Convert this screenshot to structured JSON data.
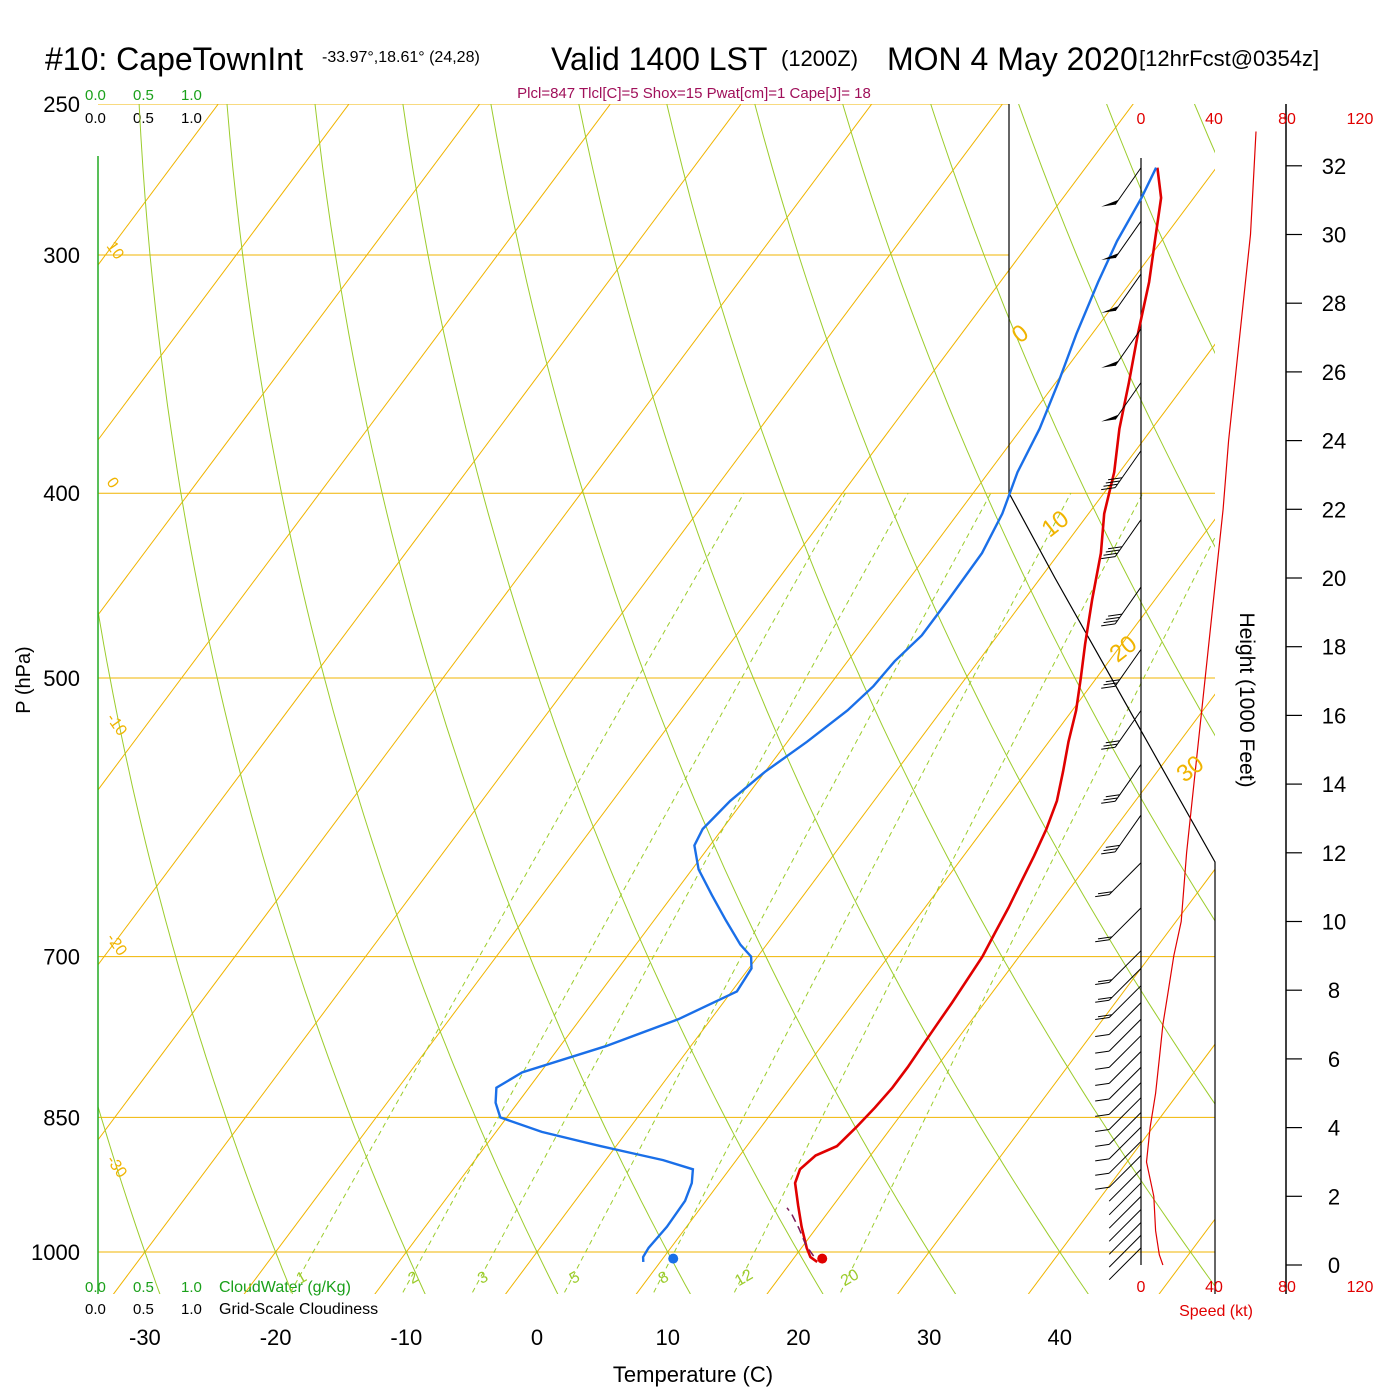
{
  "header": {
    "station": "#10: CapeTownInt",
    "coords": "-33.97°,18.61° (24,28)",
    "valid": "Valid 1400 LST",
    "zulu": "(1200Z)",
    "date": "MON 4 May 2020",
    "forecast": "[12hrFcst@0354z]"
  },
  "indices_text": "Plcl=847 Tlcl[C]=5 Shox=15 Pwat[cm]=1 Cape[J]= 18",
  "cloud_scale": {
    "values": [
      "0.0",
      "0.5",
      "1.0"
    ]
  },
  "footer": {
    "cloudwater_label": "CloudWater (g/Kg)",
    "cloudiness_label": "Grid-Scale Cloudiness"
  },
  "colors": {
    "isotherm": "#f0b400",
    "dry_adiabat": "#9ccc2c",
    "mixing_ratio": "#9ccc2c",
    "temperature": "#e00000",
    "dewpoint": "#1a6fe8",
    "speed": "#e00000",
    "indices": "#a0105a",
    "cloud": "#1aa01a"
  },
  "chart_data": {
    "type": "skew-t",
    "xlabel": "Temperature (C)",
    "ylabel": "P (hPa)",
    "y2label": "Height (1000 Feet)",
    "x_ticks": [
      -30,
      -20,
      -10,
      0,
      10,
      20,
      30,
      40
    ],
    "p_ticks": [
      250,
      300,
      400,
      500,
      700,
      850,
      1000
    ],
    "height_ticks": [
      0,
      2,
      4,
      6,
      8,
      10,
      12,
      14,
      16,
      18,
      20,
      22,
      24,
      26,
      28,
      30,
      32
    ],
    "speed_axis": {
      "label": "Speed (kt)",
      "ticks": [
        0,
        40,
        80,
        120
      ]
    },
    "isotherm_labels": [
      {
        "t": 10,
        "label": "10"
      },
      {
        "t": 0,
        "label": "0"
      },
      {
        "t": -10,
        "label": "-10"
      },
      {
        "t": -20,
        "label": "-20"
      },
      {
        "t": -30,
        "label": "-30"
      },
      {
        "t": 0,
        "label": "0"
      },
      {
        "t": 10,
        "label": "10"
      },
      {
        "t": 20,
        "label": "20"
      },
      {
        "t": 30,
        "label": "30"
      }
    ],
    "mixing_ratio_labels": [
      "1",
      "2",
      "3",
      "5",
      "8",
      "12",
      "20"
    ],
    "series": [
      {
        "name": "temperature",
        "points": [
          [
            22.0,
            1012
          ],
          [
            21.2,
            1006
          ],
          [
            20.4,
            995
          ],
          [
            18.8,
            970
          ],
          [
            17.3,
            945
          ],
          [
            15.8,
            920
          ],
          [
            15.4,
            905
          ],
          [
            15.8,
            890
          ],
          [
            16.9,
            880
          ],
          [
            17.3,
            860
          ],
          [
            17.6,
            840
          ],
          [
            17.8,
            820
          ],
          [
            17.8,
            800
          ],
          [
            17.7,
            780
          ],
          [
            17.6,
            760
          ],
          [
            17.5,
            740
          ],
          [
            17.2,
            700
          ],
          [
            16.8,
            680
          ],
          [
            16.4,
            660
          ],
          [
            15.9,
            640
          ],
          [
            15.4,
            620
          ],
          [
            14.8,
            600
          ],
          [
            14.0,
            580
          ],
          [
            12.8,
            560
          ],
          [
            11.5,
            540
          ],
          [
            10.3,
            520
          ],
          [
            8.8,
            500
          ],
          [
            7.2,
            480
          ],
          [
            5.2,
            455
          ],
          [
            3.2,
            430
          ],
          [
            1.2,
            410
          ],
          [
            -0.4,
            390
          ],
          [
            -2.5,
            370
          ],
          [
            -4.4,
            350
          ],
          [
            -6.5,
            330
          ],
          [
            -8.6,
            310
          ],
          [
            -10.5,
            295
          ],
          [
            -12.5,
            280
          ],
          [
            -14.5,
            270
          ]
        ]
      },
      {
        "name": "dewpoint",
        "points": [
          [
            8.7,
            1012
          ],
          [
            8.4,
            1006
          ],
          [
            8.3,
            995
          ],
          [
            8.5,
            970
          ],
          [
            8.4,
            940
          ],
          [
            7.9,
            920
          ],
          [
            7.2,
            905
          ],
          [
            4.4,
            895
          ],
          [
            -1.2,
            880
          ],
          [
            -6.5,
            865
          ],
          [
            -10.5,
            850
          ],
          [
            -11.7,
            835
          ],
          [
            -12.5,
            820
          ],
          [
            -11.4,
            805
          ],
          [
            -6.5,
            780
          ],
          [
            -2.5,
            755
          ],
          [
            0.4,
            730
          ],
          [
            0.2,
            710
          ],
          [
            -0.5,
            700
          ],
          [
            -2.0,
            690
          ],
          [
            -4.5,
            670
          ],
          [
            -7.0,
            650
          ],
          [
            -9.5,
            630
          ],
          [
            -11.2,
            612
          ],
          [
            -11.5,
            600
          ],
          [
            -11.0,
            580
          ],
          [
            -10.0,
            560
          ],
          [
            -8.5,
            540
          ],
          [
            -7.2,
            520
          ],
          [
            -6.6,
            505
          ],
          [
            -6.4,
            490
          ],
          [
            -5.8,
            475
          ],
          [
            -5.8,
            455
          ],
          [
            -5.9,
            430
          ],
          [
            -6.6,
            410
          ],
          [
            -7.8,
            390
          ],
          [
            -8.6,
            370
          ],
          [
            -9.8,
            350
          ],
          [
            -11.2,
            330
          ],
          [
            -12.5,
            310
          ],
          [
            -13.4,
            295
          ],
          [
            -14.0,
            280
          ],
          [
            -14.6,
            270
          ]
        ]
      },
      {
        "name": "parcel",
        "points": [
          [
            21.4,
            1005
          ],
          [
            20.2,
            992
          ],
          [
            18.7,
            972
          ],
          [
            17.3,
            955
          ],
          [
            16.6,
            948
          ]
        ]
      }
    ],
    "surface_markers": {
      "temperature": 22.2,
      "dewpoint": 10.8,
      "p": 1008
    },
    "wind_speed_profile": {
      "z_kft": [
        0,
        0.3,
        1,
        2,
        3,
        4,
        5,
        6,
        7,
        8,
        9,
        10,
        12,
        14,
        16,
        18,
        20,
        22,
        24,
        26,
        28,
        30,
        32,
        33
      ],
      "kt": [
        12,
        10,
        8,
        7,
        3,
        5,
        8,
        10,
        12,
        15,
        18,
        22,
        25,
        29,
        33,
        37,
        41,
        45,
        48,
        52,
        56,
        60,
        62,
        63
      ]
    },
    "wind_barbs": [
      {
        "p": 995,
        "full": 0
      },
      {
        "p": 980,
        "full": 0
      },
      {
        "p": 965,
        "full": 0
      },
      {
        "p": 950,
        "full": 0
      },
      {
        "p": 935,
        "full": 0
      },
      {
        "p": 920,
        "full": 0
      },
      {
        "p": 905,
        "full": 0
      },
      {
        "p": 890,
        "full": 1
      },
      {
        "p": 875,
        "full": 1
      },
      {
        "p": 860,
        "full": 1
      },
      {
        "p": 845,
        "full": 1
      },
      {
        "p": 830,
        "full": 1
      },
      {
        "p": 815,
        "full": 1
      },
      {
        "p": 800,
        "full": 1
      },
      {
        "p": 785,
        "full": 1
      },
      {
        "p": 770,
        "full": 1
      },
      {
        "p": 755,
        "full": 1
      },
      {
        "p": 740,
        "full": 1
      },
      {
        "p": 725,
        "full": 2
      },
      {
        "p": 710,
        "full": 2
      },
      {
        "p": 695,
        "full": 2
      },
      {
        "p": 660,
        "full": 2
      },
      {
        "p": 625,
        "full": 2
      },
      {
        "p": 590,
        "full": 3
      },
      {
        "p": 555,
        "full": 3
      },
      {
        "p": 520,
        "full": 3
      },
      {
        "p": 483,
        "full": 3
      },
      {
        "p": 448,
        "full": 4
      },
      {
        "p": 413,
        "full": 4
      },
      {
        "p": 380,
        "full": 4
      },
      {
        "p": 350,
        "full": 0,
        "flag": 1
      },
      {
        "p": 328,
        "full": 0,
        "flag": 1
      },
      {
        "p": 307,
        "full": 0,
        "flag": 1
      },
      {
        "p": 288,
        "full": 0,
        "flag": 1
      },
      {
        "p": 270,
        "full": 0,
        "flag": 1
      }
    ]
  }
}
